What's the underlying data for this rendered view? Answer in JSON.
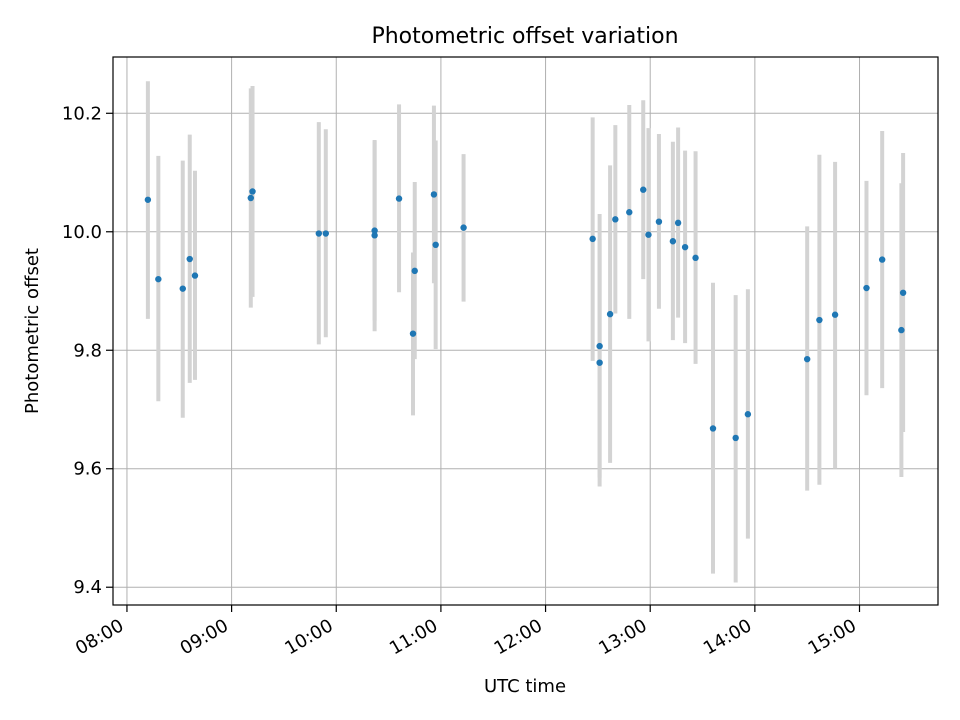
{
  "chart_data": {
    "type": "scatter",
    "title": "Photometric offset variation",
    "xlabel": "UTC time",
    "ylabel": "Photometric offset",
    "xlim": [
      "07:52",
      "15:45"
    ],
    "ylim": [
      9.37,
      10.295
    ],
    "x_ticks": [
      "08:00",
      "09:00",
      "10:00",
      "11:00",
      "12:00",
      "13:00",
      "14:00",
      "15:00"
    ],
    "y_ticks": [
      9.4,
      9.6,
      9.8,
      10.0,
      10.2
    ],
    "grid": true,
    "series": [
      {
        "marker_color": "#1f77b4",
        "errorbar_color": "#d3d3d3",
        "points": [
          {
            "t": "08:12",
            "y": 10.054,
            "lo": 9.853,
            "hi": 10.254
          },
          {
            "t": "08:18",
            "y": 9.92,
            "lo": 9.714,
            "hi": 10.128
          },
          {
            "t": "08:32",
            "y": 9.904,
            "lo": 9.686,
            "hi": 10.12
          },
          {
            "t": "08:36",
            "y": 9.954,
            "lo": 9.745,
            "hi": 10.164
          },
          {
            "t": "08:39",
            "y": 9.926,
            "lo": 9.75,
            "hi": 10.103
          },
          {
            "t": "09:11",
            "y": 10.057,
            "lo": 9.872,
            "hi": 10.242
          },
          {
            "t": "09:12",
            "y": 10.068,
            "lo": 9.89,
            "hi": 10.246
          },
          {
            "t": "09:50",
            "y": 9.997,
            "lo": 9.81,
            "hi": 10.185
          },
          {
            "t": "09:54",
            "y": 9.997,
            "lo": 9.822,
            "hi": 10.173
          },
          {
            "t": "10:22",
            "y": 9.994,
            "lo": 9.832,
            "hi": 10.155
          },
          {
            "t": "10:22",
            "y": 10.002,
            "lo": 9.85,
            "hi": 10.153
          },
          {
            "t": "10:36",
            "y": 10.056,
            "lo": 9.898,
            "hi": 10.215
          },
          {
            "t": "10:44",
            "y": 9.828,
            "lo": 9.69,
            "hi": 9.965
          },
          {
            "t": "10:45",
            "y": 9.934,
            "lo": 9.785,
            "hi": 10.084
          },
          {
            "t": "10:56",
            "y": 10.063,
            "lo": 9.913,
            "hi": 10.213
          },
          {
            "t": "10:57",
            "y": 9.978,
            "lo": 9.802,
            "hi": 10.154
          },
          {
            "t": "11:13",
            "y": 10.007,
            "lo": 9.882,
            "hi": 10.131
          },
          {
            "t": "12:27",
            "y": 9.988,
            "lo": 9.782,
            "hi": 10.193
          },
          {
            "t": "12:31",
            "y": 9.807,
            "lo": 9.585,
            "hi": 10.03
          },
          {
            "t": "12:31",
            "y": 9.779,
            "lo": 9.57,
            "hi": 9.988
          },
          {
            "t": "12:37",
            "y": 9.861,
            "lo": 9.61,
            "hi": 10.112
          },
          {
            "t": "12:40",
            "y": 10.021,
            "lo": 9.862,
            "hi": 10.18
          },
          {
            "t": "12:48",
            "y": 10.033,
            "lo": 9.853,
            "hi": 10.214
          },
          {
            "t": "12:56",
            "y": 10.071,
            "lo": 9.92,
            "hi": 10.222
          },
          {
            "t": "12:59",
            "y": 9.995,
            "lo": 9.815,
            "hi": 10.175
          },
          {
            "t": "13:05",
            "y": 10.017,
            "lo": 9.87,
            "hi": 10.165
          },
          {
            "t": "13:13",
            "y": 9.984,
            "lo": 9.817,
            "hi": 10.152
          },
          {
            "t": "13:16",
            "y": 10.015,
            "lo": 9.855,
            "hi": 10.176
          },
          {
            "t": "13:20",
            "y": 9.974,
            "lo": 9.812,
            "hi": 10.137
          },
          {
            "t": "13:26",
            "y": 9.956,
            "lo": 9.777,
            "hi": 10.136
          },
          {
            "t": "13:36",
            "y": 9.668,
            "lo": 9.423,
            "hi": 9.914
          },
          {
            "t": "13:49",
            "y": 9.652,
            "lo": 9.408,
            "hi": 9.893
          },
          {
            "t": "13:56",
            "y": 9.692,
            "lo": 9.482,
            "hi": 9.903
          },
          {
            "t": "14:30",
            "y": 9.785,
            "lo": 9.563,
            "hi": 10.009
          },
          {
            "t": "14:37",
            "y": 9.851,
            "lo": 9.573,
            "hi": 10.13
          },
          {
            "t": "14:46",
            "y": 9.86,
            "lo": 9.6,
            "hi": 10.118
          },
          {
            "t": "15:04",
            "y": 9.905,
            "lo": 9.724,
            "hi": 10.086
          },
          {
            "t": "15:13",
            "y": 9.953,
            "lo": 9.736,
            "hi": 10.17
          },
          {
            "t": "15:24",
            "y": 9.834,
            "lo": 9.586,
            "hi": 10.082
          },
          {
            "t": "15:25",
            "y": 9.897,
            "lo": 9.662,
            "hi": 10.133
          }
        ]
      }
    ]
  }
}
